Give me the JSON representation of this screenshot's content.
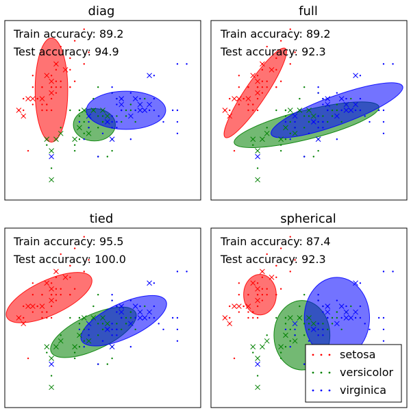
{
  "chart_data": [
    {
      "type": "scatter",
      "title": "diag",
      "train_accuracy": "Train accuracy: 89.2",
      "test_accuracy": "Test accuracy: 94.9",
      "ellipses": [
        {
          "class": "setosa",
          "cx": 5.0,
          "cy": 3.35,
          "rx": 0.35,
          "ry": 0.9,
          "angle": 0
        },
        {
          "class": "versicolor",
          "cx": 5.92,
          "cy": 2.75,
          "rx": 0.45,
          "ry": 0.28,
          "angle": 0
        },
        {
          "class": "virginica",
          "cx": 6.6,
          "cy": 3.0,
          "rx": 0.85,
          "ry": 0.33,
          "angle": 0
        }
      ],
      "train_points": {
        "setosa": [
          [
            4.9,
            3.0
          ],
          [
            4.7,
            3.2
          ],
          [
            4.6,
            3.1
          ],
          [
            5.0,
            3.6
          ],
          [
            5.4,
            3.9
          ],
          [
            4.6,
            3.4
          ],
          [
            5.0,
            3.4
          ],
          [
            4.4,
            2.9
          ],
          [
            4.9,
            3.1
          ],
          [
            5.4,
            3.7
          ],
          [
            4.8,
            3.4
          ],
          [
            4.8,
            3.0
          ],
          [
            4.3,
            3.0
          ],
          [
            5.8,
            4.0
          ],
          [
            5.7,
            4.4
          ],
          [
            5.4,
            3.9
          ],
          [
            5.1,
            3.5
          ],
          [
            5.7,
            3.8
          ],
          [
            5.1,
            3.8
          ],
          [
            5.4,
            3.4
          ],
          [
            5.1,
            3.7
          ],
          [
            4.6,
            3.6
          ],
          [
            5.1,
            3.3
          ],
          [
            4.8,
            3.4
          ],
          [
            5.0,
            3.0
          ],
          [
            5.0,
            3.4
          ],
          [
            5.2,
            3.5
          ],
          [
            5.2,
            3.4
          ],
          [
            4.7,
            3.2
          ],
          [
            4.8,
            3.1
          ],
          [
            5.4,
            3.4
          ],
          [
            5.2,
            4.1
          ],
          [
            5.5,
            4.2
          ],
          [
            4.9,
            3.1
          ],
          [
            5.0,
            3.2
          ],
          [
            5.5,
            3.5
          ],
          [
            4.4,
            3.0
          ],
          [
            5.1,
            3.4
          ],
          [
            4.5,
            2.3
          ],
          [
            4.4,
            3.2
          ]
        ],
        "versicolor": [
          [
            7.0,
            3.2
          ],
          [
            6.4,
            3.2
          ],
          [
            6.9,
            3.1
          ],
          [
            5.5,
            2.3
          ],
          [
            6.5,
            2.8
          ],
          [
            5.7,
            2.8
          ],
          [
            6.3,
            3.3
          ],
          [
            4.9,
            2.4
          ],
          [
            6.6,
            2.9
          ],
          [
            5.2,
            2.7
          ],
          [
            5.0,
            2.0
          ],
          [
            5.9,
            3.0
          ],
          [
            6.0,
            2.2
          ],
          [
            6.1,
            2.9
          ],
          [
            5.6,
            2.9
          ],
          [
            6.7,
            3.1
          ],
          [
            5.6,
            3.0
          ],
          [
            5.8,
            2.7
          ],
          [
            6.2,
            2.2
          ],
          [
            5.6,
            2.5
          ],
          [
            5.9,
            3.2
          ],
          [
            6.1,
            2.8
          ],
          [
            6.3,
            2.5
          ],
          [
            6.1,
            2.8
          ],
          [
            6.4,
            2.9
          ],
          [
            6.6,
            3.0
          ],
          [
            6.8,
            2.8
          ],
          [
            6.7,
            3.0
          ],
          [
            6.0,
            2.9
          ],
          [
            5.7,
            2.6
          ],
          [
            5.5,
            2.4
          ],
          [
            5.8,
            2.7
          ],
          [
            6.0,
            2.7
          ],
          [
            5.4,
            3.0
          ],
          [
            6.0,
            3.4
          ],
          [
            6.7,
            3.1
          ],
          [
            6.3,
            2.3
          ],
          [
            5.6,
            3.0
          ]
        ],
        "virginica": [
          [
            6.3,
            3.3
          ],
          [
            5.8,
            2.7
          ],
          [
            7.1,
            3.0
          ],
          [
            6.3,
            2.9
          ],
          [
            6.5,
            3.0
          ],
          [
            7.6,
            3.0
          ],
          [
            7.3,
            2.9
          ],
          [
            6.7,
            2.5
          ],
          [
            7.2,
            3.6
          ],
          [
            6.5,
            3.2
          ],
          [
            6.4,
            2.7
          ],
          [
            6.8,
            3.0
          ],
          [
            5.7,
            2.5
          ],
          [
            5.8,
            2.8
          ],
          [
            6.4,
            3.2
          ],
          [
            6.5,
            3.0
          ],
          [
            7.7,
            3.8
          ],
          [
            7.7,
            2.6
          ],
          [
            6.0,
            2.2
          ],
          [
            6.9,
            3.2
          ],
          [
            5.6,
            2.8
          ],
          [
            7.7,
            2.8
          ],
          [
            6.3,
            2.7
          ],
          [
            6.7,
            3.3
          ],
          [
            7.2,
            3.2
          ],
          [
            6.2,
            2.8
          ],
          [
            6.1,
            3.0
          ],
          [
            6.4,
            2.8
          ],
          [
            7.2,
            3.0
          ],
          [
            7.4,
            2.8
          ],
          [
            7.9,
            3.8
          ],
          [
            6.4,
            2.8
          ],
          [
            6.3,
            2.8
          ],
          [
            6.1,
            2.6
          ],
          [
            7.7,
            3.0
          ],
          [
            6.3,
            3.4
          ],
          [
            6.4,
            3.1
          ]
        ],
        "test_setosa": [
          [
            4.3,
            3.0
          ],
          [
            4.4,
            2.9
          ],
          [
            5.0,
            3.5
          ],
          [
            5.1,
            3.8
          ],
          [
            4.5,
            3.2
          ],
          [
            5.3,
            3.7
          ],
          [
            4.9,
            3.6
          ],
          [
            4.6,
            3.2
          ],
          [
            5.0,
            3.3
          ],
          [
            4.8,
            3.2
          ]
        ],
        "test_versicolor": [
          [
            4.9,
            2.5
          ],
          [
            5.1,
            2.5
          ],
          [
            5.7,
            3.0
          ],
          [
            5.6,
            2.7
          ],
          [
            5.5,
            2.5
          ],
          [
            5.0,
            2.3
          ],
          [
            5.8,
            2.6
          ],
          [
            6.2,
            2.9
          ],
          [
            5.0,
            1.8
          ],
          [
            5.9,
            3.0
          ],
          [
            6.1,
            3.0
          ],
          [
            5.2,
            2.6
          ]
        ],
        "test_virginica": [
          [
            5.0,
            2.2
          ],
          [
            7.1,
            3.6
          ],
          [
            6.9,
            3.1
          ],
          [
            6.7,
            2.9
          ],
          [
            6.5,
            3.1
          ],
          [
            7.0,
            3.0
          ],
          [
            5.8,
            2.9
          ],
          [
            6.8,
            3.2
          ],
          [
            7.1,
            3.1
          ],
          [
            6.3,
            2.5
          ],
          [
            6.9,
            3.0
          ],
          [
            6.2,
            2.8
          ],
          [
            6.5,
            3.2
          ]
        ]
      }
    },
    {
      "type": "scatter",
      "title": "full",
      "train_accuracy": "Train accuracy: 89.2",
      "test_accuracy": "Test accuracy: 92.3",
      "ellipses": [
        {
          "class": "setosa",
          "cx": 4.95,
          "cy": 3.3,
          "rx": 1.15,
          "ry": 0.18,
          "angle": -56
        },
        {
          "class": "versicolor",
          "cx": 6.05,
          "cy": 2.75,
          "rx": 1.6,
          "ry": 0.25,
          "angle": -14
        },
        {
          "class": "virginica",
          "cx": 6.7,
          "cy": 3.0,
          "rx": 1.5,
          "ry": 0.25,
          "angle": -20
        }
      ]
    },
    {
      "type": "scatter",
      "title": "tied",
      "train_accuracy": "Train accuracy: 95.5",
      "test_accuracy": "Test accuracy: 100.0",
      "ellipses": [
        {
          "class": "setosa",
          "cx": 4.95,
          "cy": 3.35,
          "rx": 1.0,
          "ry": 0.3,
          "angle": -25
        },
        {
          "class": "versicolor",
          "cx": 5.9,
          "cy": 2.75,
          "rx": 1.0,
          "ry": 0.3,
          "angle": -25
        },
        {
          "class": "virginica",
          "cx": 6.55,
          "cy": 2.95,
          "rx": 1.0,
          "ry": 0.3,
          "angle": -25
        }
      ]
    },
    {
      "type": "scatter",
      "title": "spherical",
      "train_accuracy": "Train accuracy: 87.4",
      "test_accuracy": "Test accuracy: 92.3",
      "ellipses": [
        {
          "class": "setosa",
          "cx": 5.05,
          "cy": 3.4,
          "rx": 0.35,
          "ry": 0.35,
          "angle": 0
        },
        {
          "class": "versicolor",
          "cx": 5.95,
          "cy": 2.7,
          "rx": 0.6,
          "ry": 0.6,
          "angle": 0
        },
        {
          "class": "virginica",
          "cx": 6.7,
          "cy": 3.0,
          "rx": 0.7,
          "ry": 0.7,
          "angle": 0
        }
      ],
      "legend": [
        "setosa",
        "versicolor",
        "virginica"
      ],
      "legend_placement": "lower-right"
    }
  ],
  "colors": {
    "setosa": "#ff0000",
    "versicolor": "#008000",
    "virginica": "#0000ff"
  }
}
